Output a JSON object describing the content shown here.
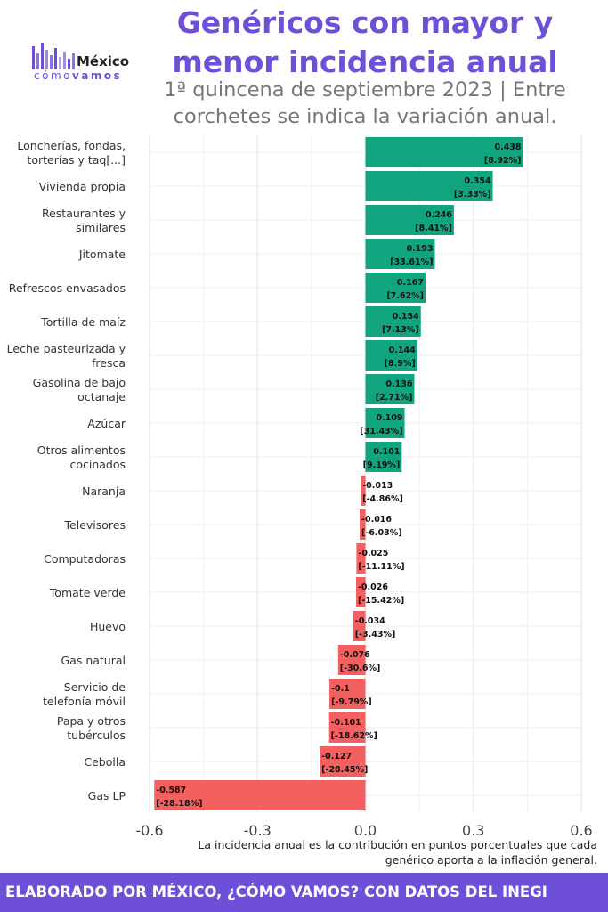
{
  "logo": {
    "word": "México",
    "sub_a": "cómo",
    "sub_b": "vamos"
  },
  "chart_data": {
    "type": "bar",
    "orientation": "horizontal",
    "title": "Genéricos con mayor y menor incidencia anual",
    "subtitle": "1ª quincena de septiembre 2023 | Entre corchetes se indica la variación anual.",
    "xlabel": "",
    "ylabel": "",
    "xlim": [
      -0.6,
      0.6
    ],
    "xticks": [
      -0.6,
      -0.3,
      0.0,
      0.3,
      0.6
    ],
    "xtick_labels": [
      "-0.6",
      "-0.3",
      "0.0",
      "0.3",
      "0.6"
    ],
    "grid": true,
    "categories": [
      [
        "Loncherías, fondas,",
        "torterías y taq[...]"
      ],
      [
        "Vivienda propia"
      ],
      [
        "Restaurantes y",
        "similares"
      ],
      [
        "Jitomate"
      ],
      [
        "Refrescos envasados"
      ],
      [
        "Tortilla de maíz"
      ],
      [
        "Leche pasteurizada y",
        "fresca"
      ],
      [
        "Gasolina de bajo",
        "octanaje"
      ],
      [
        "Azúcar"
      ],
      [
        "Otros alimentos",
        "cocinados"
      ],
      [
        "Naranja"
      ],
      [
        "Televisores"
      ],
      [
        "Computadoras"
      ],
      [
        "Tomate verde"
      ],
      [
        "Huevo"
      ],
      [
        "Gas natural"
      ],
      [
        "Servicio de",
        "telefonía móvil"
      ],
      [
        "Papa y otros",
        "tubérculos"
      ],
      [
        "Cebolla"
      ],
      [
        "Gas LP"
      ]
    ],
    "values": [
      0.438,
      0.354,
      0.246,
      0.193,
      0.167,
      0.154,
      0.144,
      0.136,
      0.109,
      0.101,
      -0.013,
      -0.016,
      -0.025,
      -0.026,
      -0.034,
      -0.076,
      -0.1,
      -0.101,
      -0.127,
      -0.587
    ],
    "value_labels": [
      "0.438",
      "0.354",
      "0.246",
      "0.193",
      "0.167",
      "0.154",
      "0.144",
      "0.136",
      "0.109",
      "0.101",
      "-0.013",
      "-0.016",
      "-0.025",
      "-0.026",
      "-0.034",
      "-0.076",
      "-0.1",
      "-0.101",
      "-0.127",
      "-0.587"
    ],
    "annual_variation": [
      "[8.92%]",
      "[3.33%]",
      "[8.41%]",
      "[33.61%]",
      "[7.62%]",
      "[7.13%]",
      "[8.9%]",
      "[2.71%]",
      "[31.43%]",
      "[9.19%]",
      "[-4.86%]",
      "[-6.03%]",
      "[-11.11%]",
      "[-15.42%]",
      "[-3.43%]",
      "[-30.6%]",
      "[-9.79%]",
      "[-18.62%]",
      "[-28.45%]",
      "[-28.18%]"
    ],
    "colors": {
      "positive": "#11a57f",
      "negative": "#f46060",
      "grid": "#e6e6e6"
    }
  },
  "footnote": "La incidencia anual es la contribución en puntos porcentuales que cada genérico aporta a la inflación general.",
  "footer": "ELABORADO POR MÉXICO, ¿CÓMO VAMOS? CON DATOS DEL INEGI"
}
